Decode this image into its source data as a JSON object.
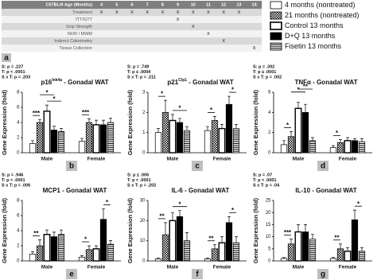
{
  "timeline_table": {
    "header": [
      "C57BL/6 Age (Months)",
      "4",
      "5",
      "6",
      "7",
      "8",
      "9",
      "10",
      "11",
      "12",
      "13",
      "14"
    ],
    "rows": [
      [
        "Treatment",
        "X",
        "X",
        "X",
        "X",
        "X",
        "X",
        "X",
        "X",
        "X",
        "X",
        null
      ],
      [
        "ITT/GTT",
        null,
        null,
        null,
        null,
        null,
        "X",
        null,
        null,
        null,
        null,
        null
      ],
      [
        "Grip Strength",
        null,
        null,
        null,
        null,
        null,
        null,
        "X",
        null,
        null,
        null,
        null
      ],
      [
        "NOR / MWM",
        null,
        null,
        null,
        null,
        null,
        null,
        null,
        "X",
        null,
        null,
        null
      ],
      [
        "Indirect Calorimetry",
        null,
        null,
        null,
        null,
        null,
        null,
        null,
        null,
        "X",
        null,
        null
      ],
      [
        "Tissue Collection",
        null,
        null,
        null,
        null,
        null,
        null,
        null,
        null,
        null,
        null,
        "X"
      ]
    ],
    "panel": "a"
  },
  "series": [
    {
      "name": "4 months (nontreated)",
      "color": "#ffffff",
      "pattern": "none"
    },
    {
      "name": "21 months (nontreated)",
      "color": "#ffffff",
      "pattern": "checker"
    },
    {
      "name": "Control 13 months",
      "color": "#ffffff",
      "pattern": "none"
    },
    {
      "name": "D+Q 13 months",
      "color": "#000000",
      "pattern": "none"
    },
    {
      "name": "Fisetin 13 months",
      "color": "#ffffff",
      "pattern": "stripes"
    }
  ],
  "chart_data": [
    {
      "type": "bar",
      "title": [
        "p16",
        "Ink4a",
        " - Gonadal WAT"
      ],
      "stats": [
        "S: p = .227",
        "T: p < .0001",
        "S x T: p = .203"
      ],
      "ylabel": "Gene Expression (fold)",
      "categories": [
        "Male",
        "Female"
      ],
      "panel": "b",
      "values": [
        [
          1.2,
          4.0,
          5.5,
          3.0,
          2.8
        ],
        [
          1.5,
          4.0,
          3.7,
          3.7,
          4.0
        ]
      ],
      "errors": [
        [
          0.4,
          0.4,
          0.8,
          0.5,
          0.4
        ],
        [
          0.4,
          0.5,
          0.6,
          0.6,
          0.6
        ]
      ],
      "ylim": [
        0,
        8
      ],
      "yticks": [
        0,
        2,
        4,
        6,
        8
      ],
      "annotations": [
        "***",
        "*",
        "*",
        "***"
      ]
    },
    {
      "type": "bar",
      "title": [
        "p21",
        "Cip1",
        " - Gonadal WAT"
      ],
      "stats": [
        "S: p = .749",
        "T: p ≤ .0004",
        "S x T: p = .211"
      ],
      "ylabel": "Gene Expression (fold)",
      "categories": [
        "Male",
        "Female"
      ],
      "panel": "c",
      "values": [
        [
          1.0,
          2.0,
          1.6,
          1.5,
          1.1
        ],
        [
          1.1,
          1.6,
          1.2,
          2.4,
          1.2
        ]
      ],
      "errors": [
        [
          0.2,
          0.6,
          0.3,
          0.2,
          0.2
        ],
        [
          0.2,
          0.2,
          0.2,
          0.4,
          0.2
        ]
      ],
      "ylim": [
        0,
        3
      ],
      "yticks": [
        0,
        1,
        2,
        3
      ],
      "annotations": [
        "*",
        "*",
        "*",
        "*"
      ]
    },
    {
      "type": "bar",
      "title": [
        "TNFα - Gonadal WAT"
      ],
      "stats": [
        "S: p = .302",
        "T: p ≤ .0001",
        "S x T: p = .002"
      ],
      "ylabel": "Gene Expression (fold)",
      "categories": [
        "Male",
        "Female"
      ],
      "panel": "d",
      "values": [
        [
          0.8,
          1.6,
          4.4,
          4.0,
          1.2
        ],
        [
          0.5,
          1.0,
          1.2,
          1.2,
          1.1
        ]
      ],
      "errors": [
        [
          0.4,
          0.5,
          0.6,
          0.8,
          0.3
        ],
        [
          0.2,
          0.3,
          0.3,
          0.2,
          0.3
        ]
      ],
      "ylim": [
        0,
        6
      ],
      "yticks": [
        0,
        2,
        4,
        6
      ],
      "annotations": [
        "*",
        "*",
        "**",
        "*"
      ]
    },
    {
      "type": "bar",
      "title": [
        "MCP1 - Gonadal WAT"
      ],
      "stats": [
        "S: p = .946",
        "T: p < .0001",
        "S x T: p = .006"
      ],
      "ylabel": "Gene Expression (fold)",
      "categories": [
        "Male",
        "Female"
      ],
      "panel": "e",
      "values": [
        [
          0.9,
          2.0,
          3.5,
          3.2,
          3.5
        ],
        [
          0.5,
          1.5,
          1.6,
          5.5,
          2.2
        ]
      ],
      "errors": [
        [
          0.3,
          0.8,
          0.6,
          0.6,
          0.6
        ],
        [
          0.2,
          0.5,
          0.4,
          1.4,
          0.5
        ]
      ],
      "ylim": [
        0,
        8
      ],
      "yticks": [
        0,
        2,
        4,
        6,
        8
      ],
      "annotations": [
        "**",
        "*",
        "*"
      ]
    },
    {
      "type": "bar",
      "title": [
        "IL-6 - Gonadal WAT"
      ],
      "stats": [
        "S: p ≤ .006",
        "T: p < .0001",
        "S x T: p = .202"
      ],
      "ylabel": "Gene Expression (fold)",
      "categories": [
        "Male",
        "Female"
      ],
      "panel": "f",
      "values": [
        [
          1,
          13,
          20,
          22,
          10
        ],
        [
          1,
          6,
          9,
          19,
          9
        ]
      ],
      "errors": [
        [
          0.5,
          6,
          4,
          3,
          4
        ],
        [
          0.5,
          2,
          3,
          3,
          3
        ]
      ],
      "ylim": [
        0,
        30
      ],
      "yticks": [
        0,
        10,
        20,
        30
      ],
      "annotations": [
        "**",
        "*",
        "**",
        "*"
      ]
    },
    {
      "type": "bar",
      "title": [
        "IL-10 - Gonadal WAT"
      ],
      "stats": [
        "S: p = .07",
        "T: p < .0001",
        "S x T: p = .04"
      ],
      "ylabel": "Gene Expression (fold)",
      "categories": [
        "Male",
        "Female"
      ],
      "panel": "g",
      "values": [
        [
          1,
          7,
          12,
          12,
          9
        ],
        [
          1,
          5,
          4,
          17,
          4
        ]
      ],
      "errors": [
        [
          0.4,
          2,
          3,
          3,
          2
        ],
        [
          0.4,
          2,
          1.5,
          4,
          1.5
        ]
      ],
      "ylim": [
        0,
        25
      ],
      "yticks": [
        0,
        5,
        10,
        15,
        20,
        25
      ],
      "annotations": [
        "***",
        "**",
        "*"
      ]
    }
  ]
}
